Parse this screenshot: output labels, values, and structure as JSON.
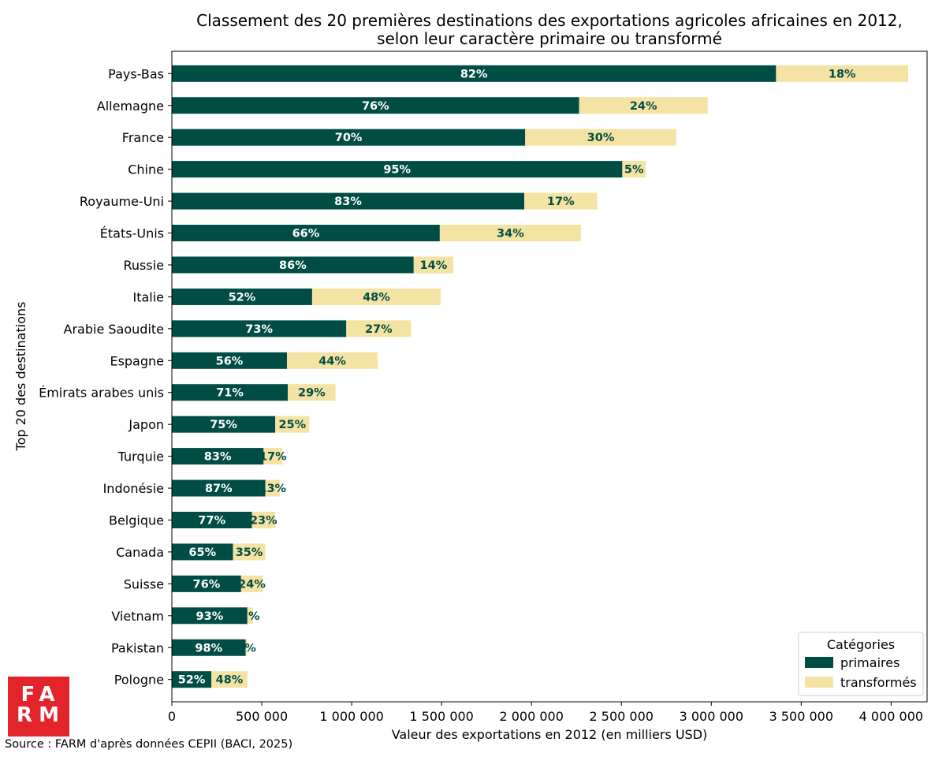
{
  "colors": {
    "primaires": "#004d45",
    "transformes": "#f4e3a3",
    "label_on_dark": "#ffffff",
    "label_on_light": "#004d45",
    "logo": "#e3242b"
  },
  "logo": {
    "line1": "FA",
    "line2": "RM"
  },
  "source": "Source : FARM d'après données CEPII (BACI, 2025)",
  "chart_data": {
    "type": "bar",
    "orientation": "horizontal",
    "stacked": true,
    "title": "Classement des 20 premières destinations des exportations agricoles africaines en 2012,",
    "subtitle": "selon leur caractère primaire ou transformé",
    "xlabel": "Valeur des exportations en 2012 (en milliers USD)",
    "ylabel": "Top 20 des destinations",
    "xlim": [
      0,
      4200000
    ],
    "xticks": [
      0,
      500000,
      1000000,
      1500000,
      2000000,
      2500000,
      3000000,
      3500000,
      4000000
    ],
    "xtick_labels": [
      "0",
      "500 000",
      "1 000 000",
      "1 500 000",
      "2 000 000",
      "2 500 000",
      "3 000 000",
      "3 500 000",
      "4 000 000"
    ],
    "grid": false,
    "legend": {
      "title": "Catégories",
      "placement": "bottom-right",
      "entries": [
        "primaires",
        "transformés"
      ]
    },
    "categories": [
      "Pays-Bas",
      "Allemagne",
      "France",
      "Chine",
      "Royaume-Uni",
      "États-Unis",
      "Russie",
      "Italie",
      "Arabie Saoudite",
      "Espagne",
      "Émirats arabes unis",
      "Japon",
      "Turquie",
      "Indonésie",
      "Belgique",
      "Canada",
      "Suisse",
      "Vietnam",
      "Pakistan",
      "Pologne"
    ],
    "series": [
      {
        "name": "primaires",
        "values": [
          3360000,
          2265000,
          1965000,
          2505000,
          1960000,
          1490000,
          1345000,
          780000,
          970000,
          640000,
          645000,
          575000,
          510000,
          520000,
          445000,
          340000,
          385000,
          420000,
          410000,
          220000
        ],
        "labels": [
          "82%",
          "76%",
          "70%",
          "95%",
          "83%",
          "66%",
          "86%",
          "52%",
          "73%",
          "56%",
          "71%",
          "75%",
          "83%",
          "87%",
          "77%",
          "65%",
          "76%",
          "93%",
          "98%",
          "52%"
        ]
      },
      {
        "name": "transformés",
        "values": [
          735000,
          715000,
          840000,
          130000,
          405000,
          785000,
          220000,
          715000,
          360000,
          505000,
          265000,
          190000,
          105000,
          80000,
          130000,
          180000,
          120000,
          30000,
          8000,
          200000
        ],
        "labels": [
          "18%",
          "24%",
          "30%",
          "5%",
          "17%",
          "34%",
          "14%",
          "48%",
          "27%",
          "44%",
          "29%",
          "25%",
          "17%",
          "13%",
          "23%",
          "35%",
          "24%",
          "7%",
          "2%",
          "48%"
        ]
      }
    ]
  }
}
